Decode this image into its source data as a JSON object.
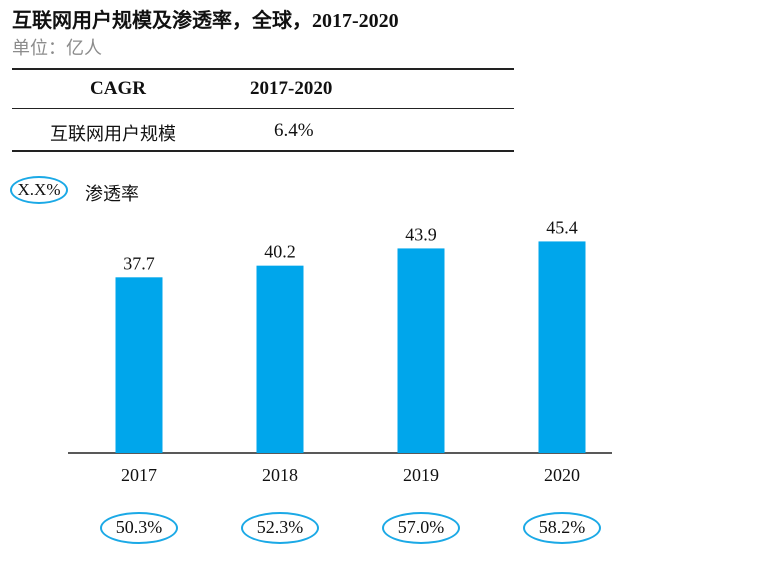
{
  "header": {
    "title": "互联网用户规模及渗透率，全球，2017-2020",
    "subtitle": "单位：亿人"
  },
  "cagr_table": {
    "col1_header": "CAGR",
    "col2_header": "2017-2020",
    "row_label": "互联网用户规模",
    "row_value": "6.4%"
  },
  "legend": {
    "marker_text": "X.X%",
    "label": "渗透率"
  },
  "colors": {
    "bar": "#00a6eb",
    "ellipse": "#1ba9e6"
  },
  "chart_data": {
    "type": "bar",
    "title": "互联网用户规模及渗透率，全球，2017-2020",
    "subtitle": "单位：亿人",
    "categories": [
      "2017",
      "2018",
      "2019",
      "2020"
    ],
    "values": [
      37.7,
      40.2,
      43.9,
      45.4
    ],
    "value_labels": [
      "37.7",
      "40.2",
      "43.9",
      "45.4"
    ],
    "penetration_rate": [
      "50.3%",
      "52.3%",
      "57.0%",
      "58.2%"
    ],
    "ylim": [
      0,
      51.5
    ],
    "grid": false
  }
}
